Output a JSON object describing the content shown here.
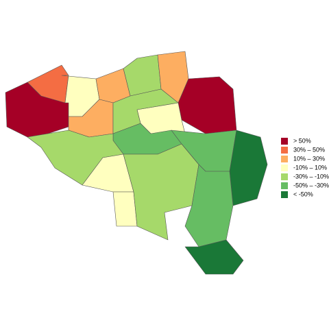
{
  "legend": {
    "items": [
      {
        "label": "> 50%",
        "color": "#a50026"
      },
      {
        "label": "30%  –  50%",
        "color": "#f46d43"
      },
      {
        "label": "10%  –  30%",
        "color": "#fdae61"
      },
      {
        "label": "-10%  –  10%",
        "color": "#ffffbf"
      },
      {
        "label": "-30%  –  -10%",
        "color": "#a6d96a"
      },
      {
        "label": "-50%  –  -30%",
        "color": "#66bd63"
      },
      {
        "label": "< -50%",
        "color": "#1a7837"
      }
    ]
  }
}
